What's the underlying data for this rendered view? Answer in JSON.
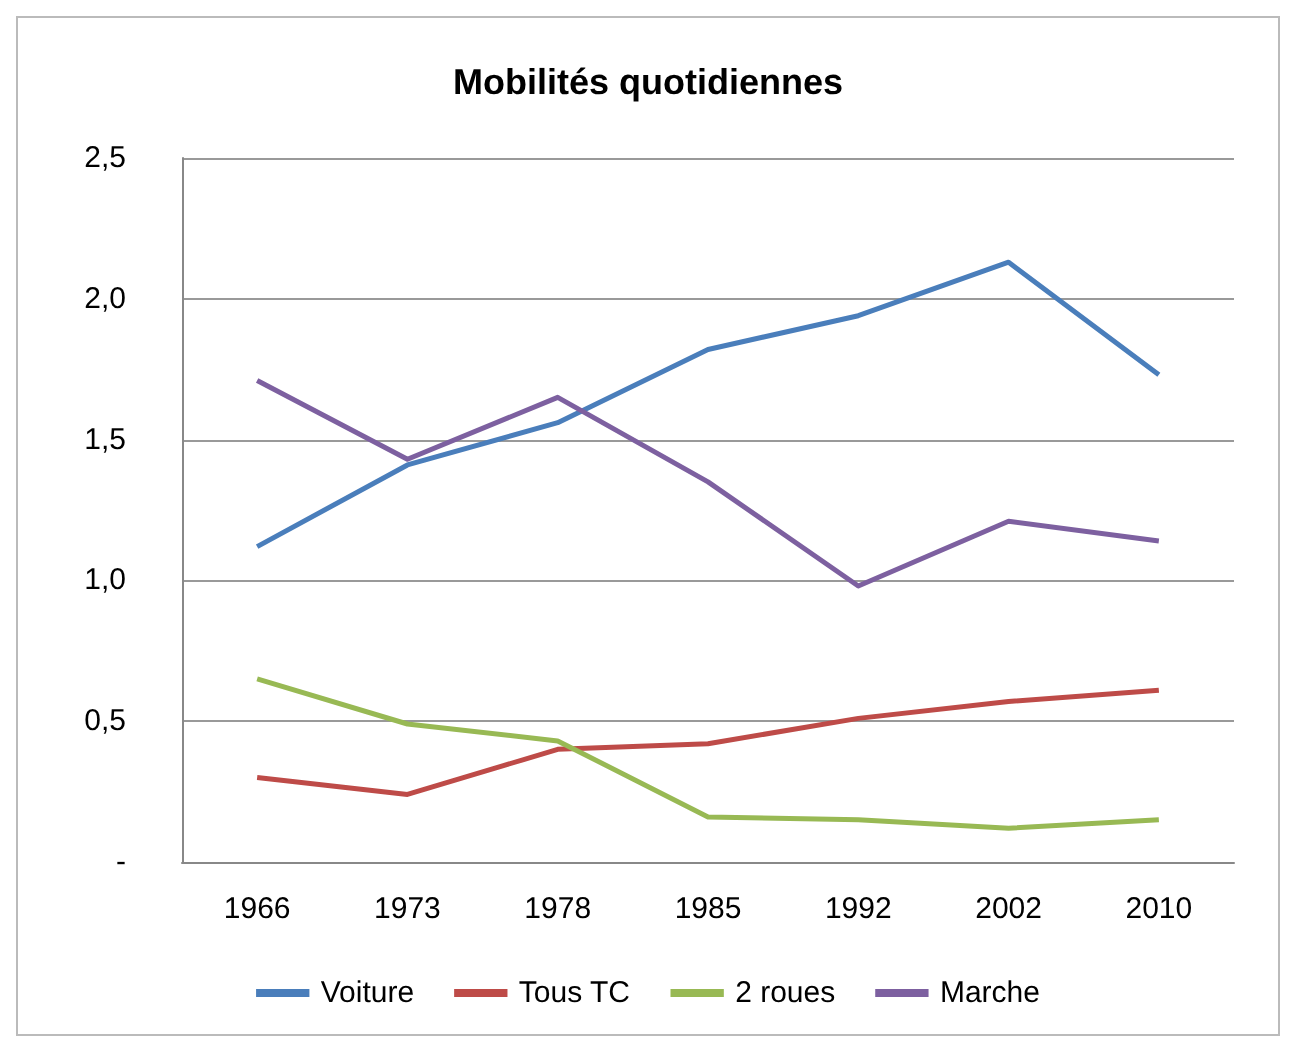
{
  "chart_data": {
    "type": "line",
    "title": "Mobilités quotidiennes",
    "categories": [
      "1966",
      "1973",
      "1978",
      "1985",
      "1992",
      "2002",
      "2010"
    ],
    "series": [
      {
        "name": "Voiture",
        "color": "#4a7ebb",
        "values": [
          1.12,
          1.41,
          1.56,
          1.82,
          1.94,
          2.13,
          1.73
        ]
      },
      {
        "name": "Tous TC",
        "color": "#be4b48",
        "values": [
          0.3,
          0.24,
          0.4,
          0.42,
          0.51,
          0.57,
          0.61
        ]
      },
      {
        "name": "2 roues",
        "color": "#98b954",
        "values": [
          0.65,
          0.49,
          0.43,
          0.16,
          0.15,
          0.12,
          0.15
        ]
      },
      {
        "name": "Marche",
        "color": "#7d60a0",
        "values": [
          1.71,
          1.43,
          1.65,
          1.35,
          0.98,
          1.21,
          1.14
        ]
      }
    ],
    "ylim": [
      0,
      2.5
    ],
    "yticks": [
      {
        "value": 0,
        "label": "-"
      },
      {
        "value": 0.5,
        "label": "0,5"
      },
      {
        "value": 1,
        "label": "1,0"
      },
      {
        "value": 1.5,
        "label": "1,5"
      },
      {
        "value": 2,
        "label": "2,0"
      },
      {
        "value": 2.5,
        "label": "2,5"
      }
    ],
    "grid": "y",
    "legend": "bottom",
    "marker": "none",
    "line_style": "solid"
  }
}
